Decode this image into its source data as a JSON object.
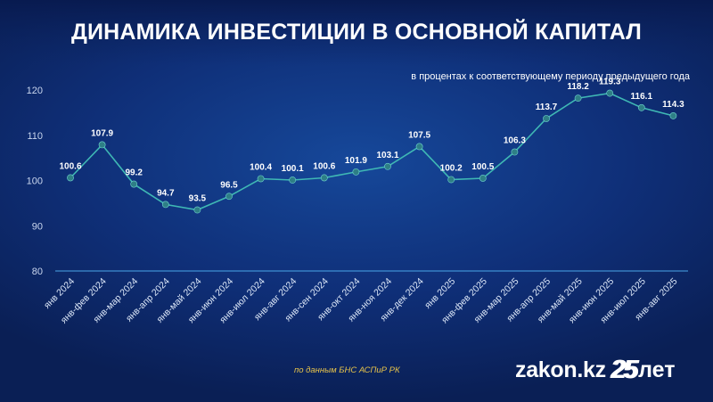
{
  "header": {
    "title": "ДИНАМИКА ИНВЕСТИЦИИ В ОСНОВНОЙ КАПИТАЛ",
    "subtitle": "в процентах к соответствующему периоду предыдущего года"
  },
  "footer": {
    "source": "по данным БНС АСПиР РК",
    "logo_domain": "zakon.kz",
    "logo_number": "25",
    "logo_word": "лет"
  },
  "colors": {
    "line": "#3fb8b4",
    "marker": "#2e7f86",
    "baseline": "#4aa6e8",
    "title_banner": "#0b1f5c",
    "source_text": "#e7c34a"
  },
  "chart_data": {
    "type": "line",
    "title": "ДИНАМИКА ИНВЕСТИЦИИ В ОСНОВНОЙ КАПИТАЛ",
    "subtitle": "в процентах к соответствующему периоду предыдущего года",
    "xlabel": "",
    "ylabel": "",
    "ylim": [
      80,
      120
    ],
    "yticks": [
      80,
      90,
      100,
      110,
      120
    ],
    "grid": false,
    "categories": [
      "янв 2024",
      "янв-фев 2024",
      "янв-мар 2024",
      "янв-апр 2024",
      "янв-май 2024",
      "янв-июн 2024",
      "янв-июл 2024",
      "янв-авг 2024",
      "янв-сен 2024",
      "янв-окт 2024",
      "янв-ноя 2024",
      "янв-дек 2024",
      "янв 2025",
      "янв-фев 2025",
      "янв-мар 2025",
      "янв-апр 2025",
      "янв-май 2025",
      "янв-июн 2025",
      "янв-июл 2025",
      "янв-авг 2025"
    ],
    "values": [
      100.6,
      107.9,
      99.2,
      94.7,
      93.5,
      96.5,
      100.4,
      100.1,
      100.6,
      101.9,
      103.1,
      107.5,
      100.2,
      100.5,
      106.3,
      113.7,
      118.2,
      119.3,
      116.1,
      114.3
    ],
    "labels": [
      "100.6",
      "107.9",
      "99.2",
      "94.7",
      "93.5",
      "96.5",
      "100.4",
      "100.1",
      "100.6",
      "101.9",
      "103.1",
      "107.5",
      "100.2",
      "100.5",
      "106.3",
      "113.7",
      "118.2",
      "119.3",
      "116.1",
      "114.3"
    ]
  }
}
